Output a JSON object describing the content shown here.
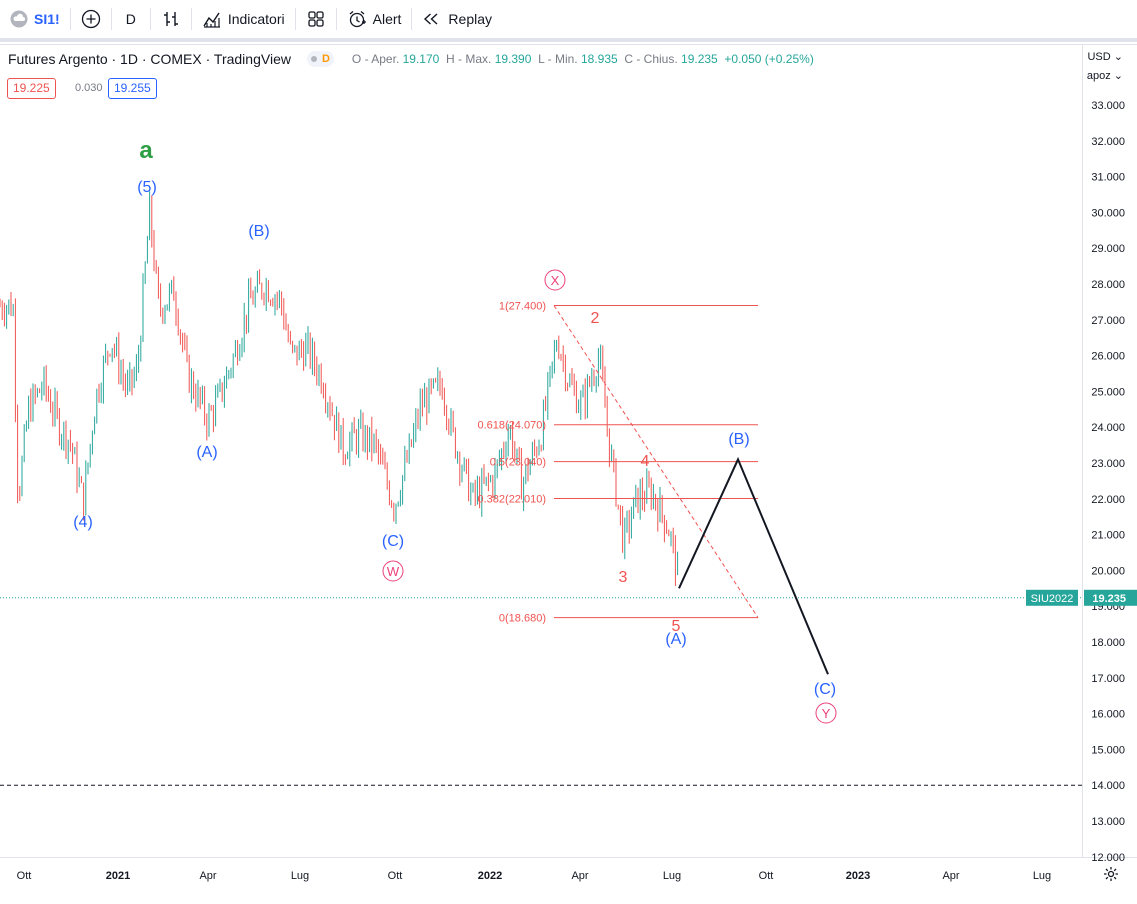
{
  "toolbar": {
    "symbol": "SI1!",
    "interval": "D",
    "indicators_label": "Indicatori",
    "alert_label": "Alert",
    "replay_label": "Replay",
    "icons": [
      "cloud-icon",
      "plus-circle-icon",
      "bar-chart-icon",
      "indicators-icon",
      "layout-grid-icon",
      "alarm-clock-icon",
      "replay-icon"
    ]
  },
  "legend": {
    "title": "Futures Argento · 1D · COMEX · TradingView",
    "badge": "D",
    "open_label": "O - Aper.",
    "open": "19.170",
    "high_label": "H - Max.",
    "high": "19.390",
    "low_label": "L - Min.",
    "low": "18.935",
    "close_label": "C - Chius.",
    "close": "19.235",
    "change": "+0.050",
    "change_pct": "(+0.25%)"
  },
  "prices": {
    "sell": "19.225",
    "spread": "0.030",
    "buy": "19.255"
  },
  "axis": {
    "currency": "USD",
    "unit": "apoz"
  },
  "colors": {
    "up": "#26a69a",
    "down": "#ef5350",
    "blue_label": "#2962ff",
    "fib": "#ef5350",
    "green_label": "#2e9e44",
    "pink": "#ec407a"
  },
  "chart_data": {
    "type": "candlestick",
    "title": "Futures Argento · 1D · COMEX · TradingView",
    "y_ticks": [
      "33.000",
      "32.000",
      "31.000",
      "30.000",
      "29.000",
      "28.000",
      "27.000",
      "26.000",
      "25.000",
      "24.000",
      "23.000",
      "22.000",
      "21.000",
      "20.000",
      "19.000",
      "18.000",
      "17.000",
      "16.000",
      "15.000",
      "14.000",
      "13.000",
      "12.000"
    ],
    "x_ticks": [
      "Ott",
      "2021",
      "Apr",
      "Lug",
      "Ott",
      "2022",
      "Apr",
      "Lug",
      "Ott",
      "2023",
      "Apr",
      "Lug"
    ],
    "ylim": [
      12,
      33
    ],
    "current_price": {
      "symbol": "SIU2022",
      "value": "19.235"
    },
    "horizontal_line": 14.0,
    "fib_levels": [
      {
        "label": "1(27.400)",
        "value": 27.4
      },
      {
        "label": "0.618(24.070)",
        "value": 24.07
      },
      {
        "label": "0.5(23.040)",
        "value": 23.04
      },
      {
        "label": "0.382(22.010)",
        "value": 22.01
      },
      {
        "label": "0(18.680)",
        "value": 18.68
      }
    ],
    "wave_labels": [
      {
        "text": "a",
        "date_idx": 130
      },
      {
        "text": "(5)",
        "date_idx": 130
      },
      {
        "text": "(4)",
        "date_idx": 75
      },
      {
        "text": "(B)",
        "date_idx": 245
      },
      {
        "text": "(A)",
        "date_idx": 195
      },
      {
        "text": "(C)",
        "date_idx": 380
      },
      {
        "text": "W",
        "date_idx": 380
      },
      {
        "text": "X",
        "date_idx": 540
      },
      {
        "text": "2",
        "date_idx": 580
      },
      {
        "text": "3",
        "date_idx": 605
      },
      {
        "text": "4",
        "date_idx": 630
      },
      {
        "text": "5",
        "date_idx": 660
      },
      {
        "text": "(A)",
        "date_idx": 660
      },
      {
        "text": "(B)",
        "date_idx": 720
      },
      {
        "text": "(C)",
        "date_idx": 810
      },
      {
        "text": "Y",
        "date_idx": 810
      }
    ],
    "projection": [
      {
        "date": "2022-07",
        "value": 19.5
      },
      {
        "date": "2022-09",
        "value": 23.1
      },
      {
        "date": "2022-12",
        "value": 17.1
      }
    ],
    "price_path": [
      {
        "x": "2020-09-20",
        "y": 27.4
      },
      {
        "x": "2020-09-25",
        "y": 22.0
      },
      {
        "x": "2020-10-05",
        "y": 24.5
      },
      {
        "x": "2020-10-20",
        "y": 25.2
      },
      {
        "x": "2020-11-05",
        "y": 24.0
      },
      {
        "x": "2020-11-15",
        "y": 23.6
      },
      {
        "x": "2020-11-28",
        "y": 21.9
      },
      {
        "x": "2020-12-10",
        "y": 24.8
      },
      {
        "x": "2020-12-25",
        "y": 26.5
      },
      {
        "x": "2021-01-10",
        "y": 25.0
      },
      {
        "x": "2021-01-20",
        "y": 25.6
      },
      {
        "x": "2021-02-01",
        "y": 30.0
      },
      {
        "x": "2021-02-10",
        "y": 27.3
      },
      {
        "x": "2021-02-25",
        "y": 27.8
      },
      {
        "x": "2021-03-10",
        "y": 25.5
      },
      {
        "x": "2021-03-30",
        "y": 24.2
      },
      {
        "x": "2021-04-10",
        "y": 24.8
      },
      {
        "x": "2021-04-25",
        "y": 26.0
      },
      {
        "x": "2021-05-10",
        "y": 27.5
      },
      {
        "x": "2021-05-25",
        "y": 28.0
      },
      {
        "x": "2021-06-10",
        "y": 27.5
      },
      {
        "x": "2021-06-20",
        "y": 26.0
      },
      {
        "x": "2021-07-05",
        "y": 26.2
      },
      {
        "x": "2021-07-20",
        "y": 25.4
      },
      {
        "x": "2021-08-10",
        "y": 23.4
      },
      {
        "x": "2021-08-25",
        "y": 23.8
      },
      {
        "x": "2021-09-10",
        "y": 23.5
      },
      {
        "x": "2021-09-29",
        "y": 21.8
      },
      {
        "x": "2021-10-15",
        "y": 23.4
      },
      {
        "x": "2021-10-25",
        "y": 24.6
      },
      {
        "x": "2021-11-15",
        "y": 25.2
      },
      {
        "x": "2021-11-25",
        "y": 23.8
      },
      {
        "x": "2021-12-15",
        "y": 22.0
      },
      {
        "x": "2022-01-05",
        "y": 22.6
      },
      {
        "x": "2022-01-20",
        "y": 24.0
      },
      {
        "x": "2022-02-01",
        "y": 22.4
      },
      {
        "x": "2022-02-20",
        "y": 23.8
      },
      {
        "x": "2022-03-08",
        "y": 26.5
      },
      {
        "x": "2022-03-20",
        "y": 25.2
      },
      {
        "x": "2022-04-01",
        "y": 24.6
      },
      {
        "x": "2022-04-18",
        "y": 26.0
      },
      {
        "x": "2022-04-28",
        "y": 23.5
      },
      {
        "x": "2022-05-12",
        "y": 20.8
      },
      {
        "x": "2022-05-25",
        "y": 22.0
      },
      {
        "x": "2022-06-08",
        "y": 22.2
      },
      {
        "x": "2022-06-25",
        "y": 21.2
      },
      {
        "x": "2022-07-05",
        "y": 19.8
      },
      {
        "x": "2022-07-14",
        "y": 18.7
      },
      {
        "x": "2022-07-20",
        "y": 19.2
      }
    ]
  }
}
